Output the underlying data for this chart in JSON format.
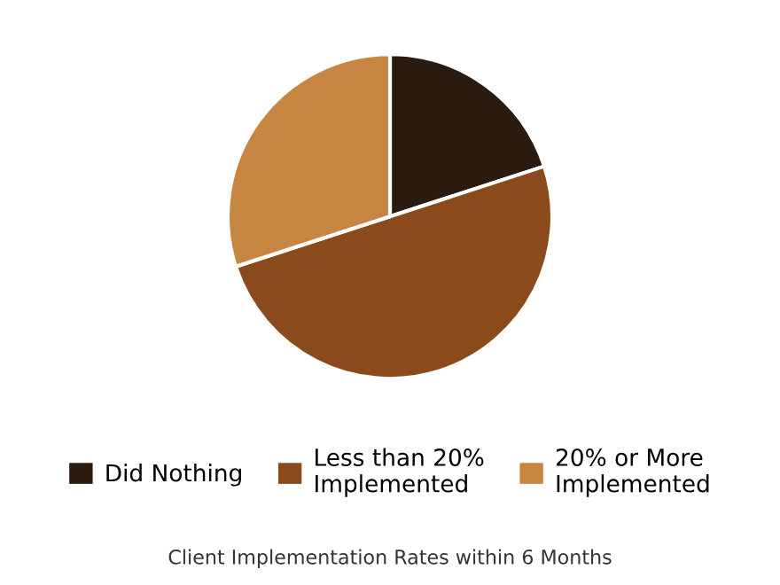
{
  "chart_data": {
    "type": "pie",
    "title": "Client Implementation Rates within 6 Months",
    "categories": [
      "Did Nothing",
      "Less than 20%\nImplemented",
      "20% or More\nImplemented"
    ],
    "values": [
      20,
      50,
      30
    ],
    "colors": [
      "#2b1a0e",
      "#8b4a1c",
      "#c68642"
    ],
    "legend": "bottom"
  }
}
